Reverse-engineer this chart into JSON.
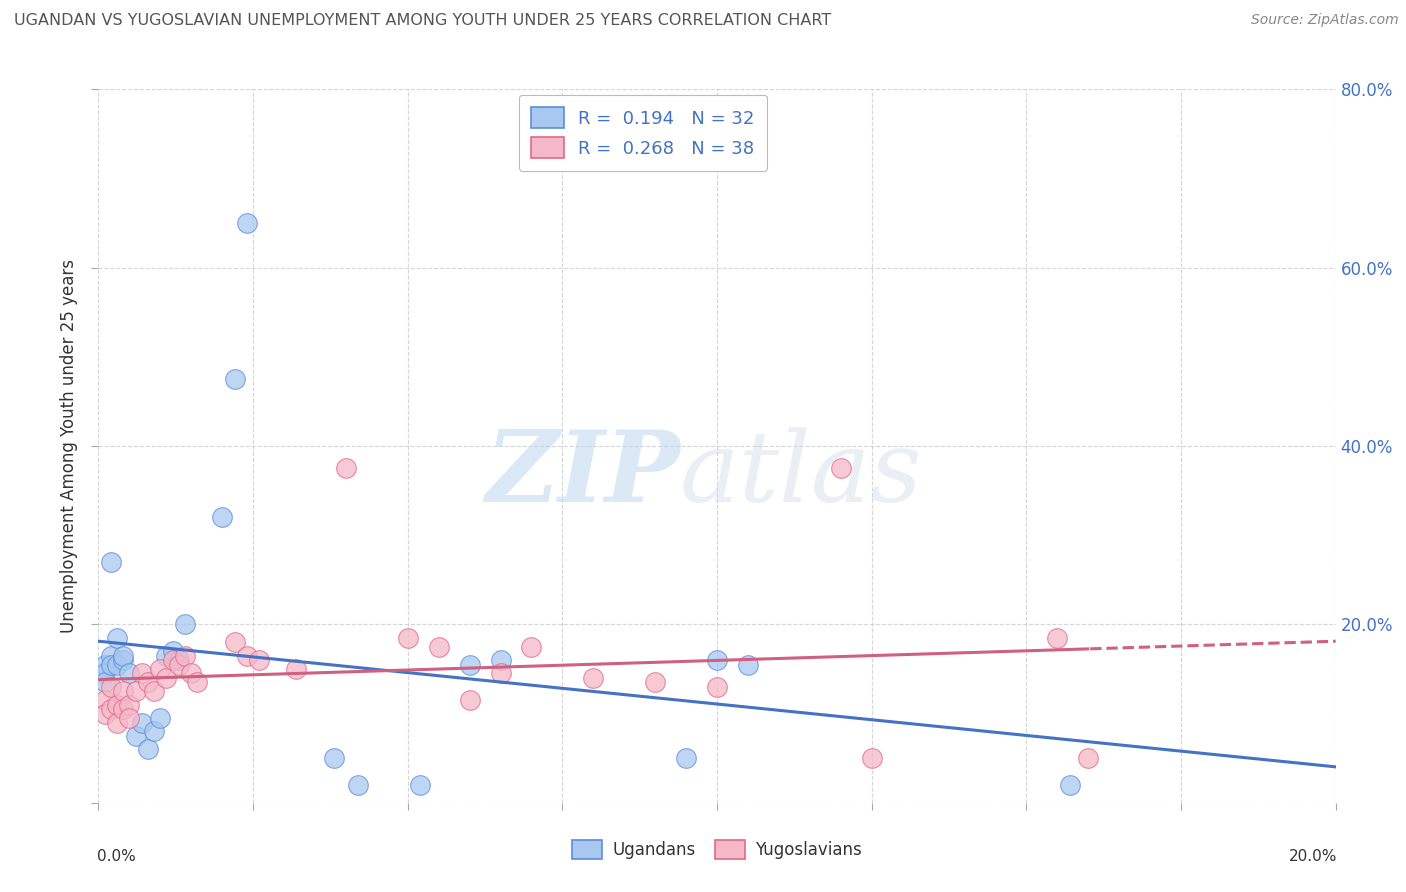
{
  "title": "UGANDAN VS YUGOSLAVIAN UNEMPLOYMENT AMONG YOUTH UNDER 25 YEARS CORRELATION CHART",
  "source": "Source: ZipAtlas.com",
  "ylabel": "Unemployment Among Youth under 25 years",
  "xlim": [
    0.0,
    0.2
  ],
  "ylim": [
    0.0,
    0.8
  ],
  "ugandan_R": 0.194,
  "ugandan_N": 32,
  "yugoslav_R": 0.268,
  "yugoslav_N": 38,
  "ugandan_color": "#A8C8F0",
  "yugoslav_color": "#F5B8C8",
  "ugandan_edge_color": "#5B8DD9",
  "yugoslav_edge_color": "#E06888",
  "ugandan_line_color": "#4472C4",
  "yugoslav_line_color": "#D06080",
  "background_color": "#FFFFFF",
  "grid_color": "#CCCCCC",
  "watermark_zip": "ZIP",
  "watermark_atlas": "atlas",
  "title_color": "#555555",
  "right_axis_color": "#4472C4",
  "ugandan_x": [
    0.001,
    0.001,
    0.001,
    0.002,
    0.002,
    0.002,
    0.003,
    0.003,
    0.004,
    0.004,
    0.005,
    0.006,
    0.007,
    0.008,
    0.009,
    0.01,
    0.011,
    0.012,
    0.013,
    0.014,
    0.02,
    0.022,
    0.024,
    0.038,
    0.042,
    0.052,
    0.06,
    0.065,
    0.095,
    0.1,
    0.105,
    0.157
  ],
  "ugandan_y": [
    0.155,
    0.145,
    0.135,
    0.165,
    0.155,
    0.27,
    0.185,
    0.155,
    0.16,
    0.165,
    0.145,
    0.075,
    0.09,
    0.06,
    0.08,
    0.095,
    0.165,
    0.17,
    0.16,
    0.2,
    0.32,
    0.475,
    0.65,
    0.05,
    0.02,
    0.02,
    0.155,
    0.16,
    0.05,
    0.16,
    0.155,
    0.02
  ],
  "yugoslav_x": [
    0.001,
    0.001,
    0.002,
    0.002,
    0.003,
    0.003,
    0.004,
    0.004,
    0.005,
    0.005,
    0.006,
    0.007,
    0.008,
    0.009,
    0.01,
    0.011,
    0.012,
    0.013,
    0.014,
    0.015,
    0.016,
    0.022,
    0.024,
    0.026,
    0.032,
    0.04,
    0.05,
    0.055,
    0.06,
    0.065,
    0.07,
    0.08,
    0.09,
    0.1,
    0.12,
    0.125,
    0.155,
    0.16
  ],
  "yugoslav_y": [
    0.115,
    0.1,
    0.13,
    0.105,
    0.11,
    0.09,
    0.125,
    0.105,
    0.11,
    0.095,
    0.125,
    0.145,
    0.135,
    0.125,
    0.15,
    0.14,
    0.16,
    0.155,
    0.165,
    0.145,
    0.135,
    0.18,
    0.165,
    0.16,
    0.15,
    0.375,
    0.185,
    0.175,
    0.115,
    0.145,
    0.175,
    0.14,
    0.135,
    0.13,
    0.375,
    0.05,
    0.185,
    0.05
  ]
}
